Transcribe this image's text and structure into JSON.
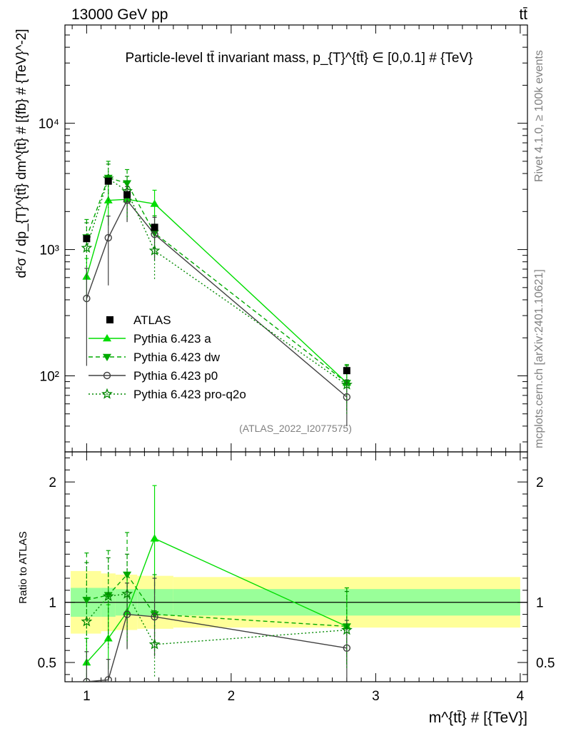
{
  "header": {
    "left": "13000 GeV pp",
    "right": "tt̄"
  },
  "side_labels": {
    "rivet": "Rivet 4.1.0, ≥ 100k events",
    "mcplots": "mcplots.cern.ch [arXiv:2401.10621]"
  },
  "colors": {
    "data": "#000000",
    "pythia_a": "#00dd00",
    "pythia_dw": "#00aa00",
    "pythia_p0": "#404040",
    "pythia_pro": "#008800",
    "band_inner": "#99ff99",
    "band_outer": "#ffff99"
  },
  "chart_data": [
    {
      "type": "line",
      "scale": "log",
      "title": "Particle-level tt̄ invariant mass, p_{T}^{tt̄} ∈ [0,0.1] # {TeV}",
      "xlabel": "m^{tt̄} # [{TeV}]",
      "ylabel": "d²σ / dp_{T}^{tt̄} dm^{tt̄} # [{fb} # {TeV}^-2]",
      "xlim": [
        0.85,
        4.05
      ],
      "ylim": [
        25,
        60000
      ],
      "y_ticks": [
        {
          "value": 100,
          "label": "10²"
        },
        {
          "value": 1000,
          "label": "10³"
        },
        {
          "value": 10000,
          "label": "10⁴"
        }
      ],
      "watermark": "(ATLAS_2022_I2077575)",
      "data": {
        "name": "ATLAS",
        "x": [
          1.0,
          1.15,
          1.28,
          1.47,
          2.8
        ],
        "y": [
          1220,
          3480,
          2720,
          1500,
          110
        ],
        "x_edges": [
          [
            0.89,
            1.1
          ],
          [
            1.1,
            1.2
          ],
          [
            1.2,
            1.35
          ],
          [
            1.35,
            1.6
          ],
          [
            1.6,
            4.0
          ]
        ],
        "rel_unc_inner": [
          0.12,
          0.12,
          0.11,
          0.11,
          0.11
        ],
        "rel_unc_outer": [
          0.26,
          0.24,
          0.23,
          0.22,
          0.21
        ]
      },
      "series": [
        {
          "name": "Pythia 6.423 a",
          "style": "solid",
          "marker": "triangle-up",
          "x": [
            1.0,
            1.15,
            1.28,
            1.47,
            2.8
          ],
          "y": [
            610,
            2450,
            2500,
            2300,
            88
          ],
          "err_lo": [
            230,
            900,
            800,
            700,
            35
          ],
          "err_hi": [
            240,
            1000,
            850,
            650,
            35
          ]
        },
        {
          "name": "Pythia 6.423 dw",
          "style": "dashed",
          "marker": "triangle-down",
          "x": [
            1.0,
            1.15,
            1.28,
            1.47,
            2.8
          ],
          "y": [
            1250,
            3700,
            3350,
            1350,
            88
          ],
          "err_lo": [
            450,
            1300,
            1100,
            500,
            35
          ],
          "err_hi": [
            480,
            1300,
            950,
            500,
            35
          ]
        },
        {
          "name": "Pythia 6.423 p0",
          "style": "solid",
          "marker": "circle-open",
          "x": [
            1.0,
            1.15,
            1.28,
            1.47,
            2.8
          ],
          "y": [
            410,
            1240,
            2450,
            1320,
            68
          ],
          "err_lo": [
            290,
            720,
            800,
            500,
            28
          ],
          "err_hi": [
            300,
            600,
            700,
            480,
            25
          ]
        },
        {
          "name": "Pythia 6.423 pro-q2o",
          "style": "dotted",
          "marker": "star",
          "x": [
            1.0,
            1.15,
            1.28,
            1.47,
            2.8
          ],
          "y": [
            1030,
            3650,
            2900,
            980,
            85
          ],
          "err_lo": [
            450,
            1500,
            1100,
            400,
            35
          ],
          "err_hi": [
            600,
            1100,
            900,
            420,
            35
          ]
        }
      ]
    },
    {
      "type": "line",
      "scale": "linear",
      "ylabel": "Ratio to ATLAS",
      "xlabel": "m^{tt̄} # [{TeV}]",
      "xlim": [
        0.85,
        4.05
      ],
      "ylim": [
        0.34,
        2.25
      ],
      "y_ticks": [
        {
          "value": 0.5,
          "label": "0.5"
        },
        {
          "value": 1,
          "label": "1"
        },
        {
          "value": 2,
          "label": "2"
        }
      ],
      "x_ticks": [
        {
          "value": 1,
          "label": "1"
        },
        {
          "value": 2,
          "label": "2"
        },
        {
          "value": 3,
          "label": "3"
        },
        {
          "value": 4,
          "label": "4"
        }
      ],
      "series": [
        {
          "name": "Pythia 6.423 a",
          "x": [
            1.0,
            1.15,
            1.28,
            1.47,
            2.8
          ],
          "y": [
            0.5,
            0.7,
            0.92,
            1.53,
            0.8
          ],
          "err_lo": [
            0.19,
            0.26,
            0.3,
            0.47,
            0.32
          ],
          "err_hi": [
            0.2,
            0.28,
            0.31,
            0.44,
            0.32
          ]
        },
        {
          "name": "Pythia 6.423 dw",
          "x": [
            1.0,
            1.15,
            1.28,
            1.47,
            2.8
          ],
          "y": [
            1.02,
            1.06,
            1.23,
            0.9,
            0.8
          ],
          "err_lo": [
            0.37,
            0.37,
            0.4,
            0.34,
            0.32
          ],
          "err_hi": [
            0.39,
            0.37,
            0.35,
            0.33,
            0.32
          ]
        },
        {
          "name": "Pythia 6.423 p0",
          "x": [
            1.0,
            1.15,
            1.28,
            1.47,
            2.8
          ],
          "y": [
            0.34,
            0.356,
            0.9,
            0.88,
            0.62
          ],
          "err_lo": [
            0.24,
            0.2,
            0.29,
            0.33,
            0.25
          ],
          "err_hi": [
            0.25,
            0.17,
            0.26,
            0.32,
            0.23
          ]
        },
        {
          "name": "Pythia 6.423 pro-q2o",
          "x": [
            1.0,
            1.15,
            1.28,
            1.47,
            2.8
          ],
          "y": [
            0.84,
            1.05,
            1.07,
            0.65,
            0.77
          ],
          "err_lo": [
            0.37,
            0.43,
            0.4,
            0.27,
            0.32
          ],
          "err_hi": [
            0.49,
            0.32,
            0.33,
            0.28,
            0.32
          ]
        }
      ]
    }
  ]
}
